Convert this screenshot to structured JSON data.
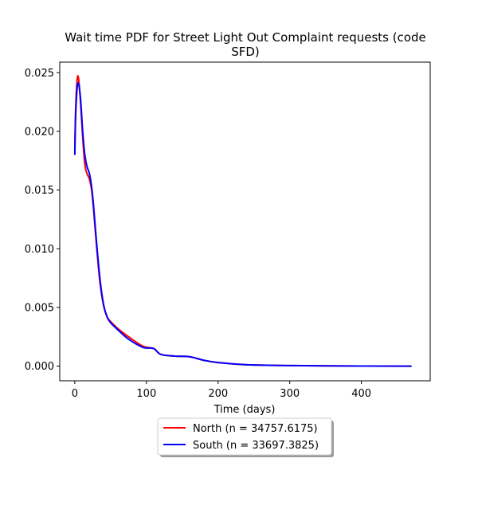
{
  "chart_data": {
    "type": "line",
    "title_line1": "Wait time PDF for Street Light Out Complaint  requests (code",
    "title_line2": "SFD)",
    "xlabel": "Time (days)",
    "ylabel": "",
    "xlim": [
      -21,
      496
    ],
    "ylim": [
      -0.00125,
      0.0259
    ],
    "xticks": [
      0,
      100,
      200,
      300,
      400
    ],
    "yticks": [
      0.0,
      0.005,
      0.01,
      0.015,
      0.02,
      0.025
    ],
    "ytick_labels": [
      "0.000",
      "0.005",
      "0.010",
      "0.015",
      "0.020",
      "0.025"
    ],
    "grid": false,
    "legend_position": "below",
    "series": [
      {
        "name": "North (n = 34757.6175)",
        "color": "#ff0000",
        "x": [
          0,
          1,
          3,
          5,
          8,
          11,
          14,
          17,
          20,
          23,
          26,
          30,
          35,
          40,
          45,
          50,
          60,
          75,
          95,
          110,
          120,
          140,
          160,
          180,
          200,
          240,
          300,
          400,
          470
        ],
        "y": [
          0.018,
          0.0215,
          0.0242,
          0.0246,
          0.0225,
          0.0195,
          0.0172,
          0.0164,
          0.016,
          0.0152,
          0.0135,
          0.0105,
          0.0072,
          0.0052,
          0.0042,
          0.0038,
          0.0032,
          0.0025,
          0.0017,
          0.0015,
          0.001,
          0.00085,
          0.0008,
          0.0005,
          0.0003,
          0.00012,
          5e-05,
          1e-05,
          0.0
        ]
      },
      {
        "name": "South (n = 33697.3825)",
        "color": "#0000ff",
        "x": [
          0,
          1,
          3,
          5,
          8,
          11,
          14,
          17,
          20,
          23,
          26,
          30,
          35,
          40,
          45,
          50,
          60,
          75,
          95,
          110,
          120,
          140,
          160,
          180,
          200,
          240,
          300,
          400,
          470
        ],
        "y": [
          0.018,
          0.021,
          0.0235,
          0.0241,
          0.0228,
          0.02,
          0.018,
          0.017,
          0.0165,
          0.0155,
          0.0138,
          0.0108,
          0.0075,
          0.0053,
          0.0042,
          0.0037,
          0.0031,
          0.0023,
          0.0016,
          0.0015,
          0.001,
          0.00085,
          0.0008,
          0.0005,
          0.0003,
          0.00012,
          5e-05,
          1e-05,
          0.0
        ]
      }
    ]
  }
}
